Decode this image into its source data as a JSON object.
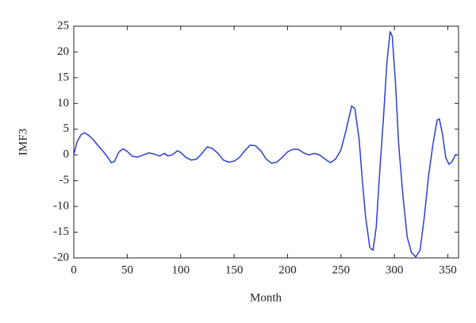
{
  "chart_data": {
    "type": "line",
    "xlabel": "Month",
    "ylabel": "IMF3",
    "xlim": [
      0,
      360
    ],
    "ylim": [
      -20,
      25
    ],
    "xticks": [
      0,
      50,
      100,
      150,
      200,
      250,
      300,
      350
    ],
    "yticks": [
      -20,
      -15,
      -10,
      -5,
      0,
      5,
      10,
      15,
      20,
      25
    ],
    "grid": false,
    "series": [
      {
        "color": "#2b3fd0",
        "x": [
          0,
          3,
          7,
          10,
          14,
          18,
          22,
          27,
          32,
          35,
          38,
          42,
          46,
          50,
          55,
          60,
          65,
          70,
          75,
          80,
          85,
          88,
          92,
          97,
          100,
          105,
          110,
          115,
          120,
          125,
          130,
          135,
          140,
          145,
          150,
          155,
          160,
          165,
          170,
          175,
          180,
          185,
          190,
          195,
          200,
          205,
          210,
          215,
          220,
          225,
          230,
          235,
          240,
          245,
          250,
          255,
          260,
          263,
          267,
          270,
          273,
          277,
          280,
          283,
          286,
          290,
          293,
          296,
          298,
          301,
          304,
          308,
          312,
          316,
          320,
          324,
          328,
          332,
          336,
          340,
          342,
          345,
          348,
          351,
          354,
          357,
          360
        ],
        "values": [
          0,
          2.5,
          4,
          4.3,
          3.8,
          3,
          2,
          0.8,
          -0.5,
          -1.5,
          -1.3,
          0.5,
          1.2,
          0.7,
          -0.3,
          -0.4,
          0,
          0.4,
          0.2,
          -0.2,
          0.3,
          -0.2,
          0,
          0.8,
          0.5,
          -0.5,
          -1,
          -0.8,
          0.3,
          1.6,
          1.2,
          0.3,
          -1,
          -1.4,
          -1.2,
          -0.5,
          0.8,
          1.9,
          1.8,
          0.8,
          -0.8,
          -1.6,
          -1.4,
          -0.5,
          0.6,
          1.1,
          1.1,
          0.4,
          0,
          0.3,
          0,
          -0.8,
          -1.5,
          -0.8,
          1,
          5,
          9.5,
          9,
          3,
          -5,
          -12,
          -18,
          -18.5,
          -14,
          -4,
          8,
          18,
          24,
          23,
          14,
          2,
          -8,
          -16,
          -19,
          -19.8,
          -18.5,
          -12,
          -4,
          2,
          6.8,
          7,
          4,
          -0.5,
          -1.8,
          -1.3,
          0,
          0
        ]
      }
    ]
  }
}
